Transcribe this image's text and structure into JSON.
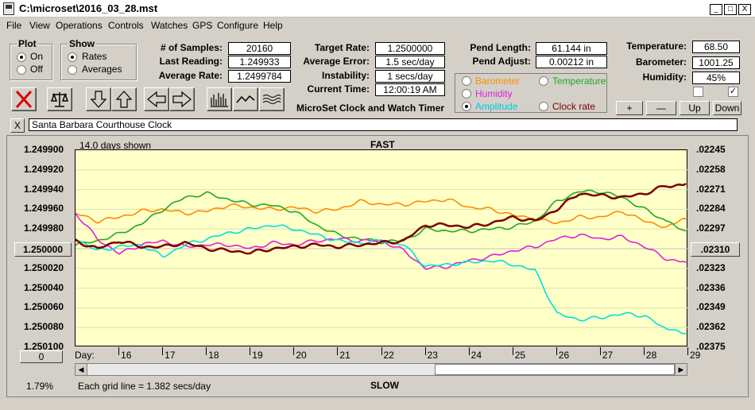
{
  "window": {
    "title": "C:\\microset\\2016_03_28.mst"
  },
  "menu": [
    "File",
    "View",
    "Operations",
    "Controls",
    "Watches",
    "GPS",
    "Configure",
    "Help"
  ],
  "plot": {
    "title": "Plot",
    "on": "On",
    "off": "Off",
    "selected": "On"
  },
  "show": {
    "title": "Show",
    "rates": "Rates",
    "averages": "Averages",
    "selected": "Rates"
  },
  "stats": {
    "samples_label": "# of Samples:",
    "samples": "20160",
    "last_label": "Last Reading:",
    "last": "1.249933",
    "avg_label": "Average Rate:",
    "avg": "1.2499784",
    "target_label": "Target Rate:",
    "target": "1.2500000",
    "avgerr_label": "Average Error:",
    "avgerr": "1.5 sec/day",
    "instab_label": "Instability:",
    "instab": "1 secs/day",
    "time_label": "Current Time:",
    "time": "12:00:19 AM",
    "pendlen_label": "Pend Length:",
    "pendlen": "61.144 in",
    "pendadj_label": "Pend Adjust:",
    "pendadj": "0.00212 in",
    "temp_label": "Temperature:",
    "temp": "68.50",
    "baro_label": "Barometer:",
    "baro": "1001.25",
    "hum_label": "Humidity:",
    "hum": "45%"
  },
  "app_title": "MicroSet Clock and Watch Timer",
  "series_select": {
    "barometer": "Barometer",
    "temperature": "Temperature",
    "humidity": "Humidity",
    "amplitude": "Amplitude",
    "clockrate": "Clock rate",
    "selected": "Amplitude"
  },
  "buttons": {
    "plus": "+",
    "minus": "—",
    "up": "Up",
    "down": "Down",
    "close": "X"
  },
  "clock_name": "Santa Barbara Courthouse Clock",
  "chart_data": {
    "type": "line",
    "top_label": "FAST",
    "bottom_label": "SLOW",
    "days_shown": "14.0 days shown",
    "grid_note": "Each grid line = 1.382 secs/day",
    "percent": "1.79%",
    "center_left": "1.250000",
    "center_right": ".02310",
    "day_label": "Day:",
    "zero_button": "0",
    "y_left_ticks": [
      "1.249900",
      "1.249920",
      "1.249940",
      "1.249960",
      "1.249980",
      "1.250000",
      "1.250020",
      "1.250040",
      "1.250060",
      "1.250080",
      "1.250100"
    ],
    "y_right_ticks": [
      ".02245",
      ".02258",
      ".02271",
      ".02284",
      ".02297",
      "",
      ".02323",
      ".02336",
      ".02349",
      ".02362",
      ".02375"
    ],
    "ylim": [
      1.2501,
      1.2499
    ],
    "x_ticks": [
      "16",
      "17",
      "18",
      "19",
      "20",
      "21",
      "22",
      "23",
      "24",
      "25",
      "26",
      "27",
      "28",
      "29"
    ],
    "xlim": [
      15,
      29
    ],
    "series": [
      {
        "color": "#ff8c00",
        "x": [
          15,
          15.5,
          16,
          16.5,
          17,
          17.5,
          18,
          18.5,
          19,
          19.5,
          20,
          20.5,
          21,
          21.5,
          22,
          22.5,
          23,
          23.5,
          24,
          24.5,
          25,
          25.5,
          26,
          26.5,
          27,
          27.5,
          28,
          28.5,
          28.95
        ],
        "values": [
          1.249964,
          1.249972,
          1.249968,
          1.249962,
          1.24996,
          1.249964,
          1.249962,
          1.249956,
          1.249958,
          1.24996,
          1.249958,
          1.249962,
          1.24996,
          1.249952,
          1.249955,
          1.249955,
          1.249952,
          1.24995,
          1.249958,
          1.24996,
          1.249966,
          1.24997,
          1.249974,
          1.249968,
          1.249968,
          1.249962,
          1.249972,
          1.249978,
          1.24997
        ]
      },
      {
        "color": "#22a822",
        "x": [
          15,
          15.5,
          16,
          16.5,
          17,
          17.5,
          18,
          18.5,
          19,
          19.5,
          20,
          20.5,
          21,
          21.5,
          22,
          22.5,
          23,
          23.5,
          24,
          24.5,
          25,
          25.5,
          26,
          26.5,
          27,
          27.5,
          28,
          28.5,
          28.95
        ],
        "values": [
          1.249996,
          1.249992,
          1.249985,
          1.249975,
          1.24996,
          1.249948,
          1.249944,
          1.24995,
          1.249955,
          1.249956,
          1.249962,
          1.249976,
          1.249986,
          1.24999,
          1.249993,
          1.249992,
          1.24998,
          1.249982,
          1.249982,
          1.24998,
          1.249978,
          1.249972,
          1.249952,
          1.249942,
          1.249942,
          1.249948,
          1.24996,
          1.249972,
          1.249982
        ]
      },
      {
        "color": "#e020e0",
        "x": [
          15,
          15.5,
          16,
          16.5,
          17,
          17.5,
          18,
          18.5,
          19,
          19.5,
          20,
          20.5,
          21,
          21.5,
          22,
          22.5,
          23,
          23.5,
          24,
          24.5,
          25,
          25.5,
          26,
          26.5,
          27,
          27.5,
          28,
          28.5,
          28.95
        ],
        "values": [
          1.249964,
          1.24999,
          1.250005,
          1.249996,
          1.249992,
          1.249998,
          1.249996,
          1.249996,
          1.25,
          1.249994,
          1.249996,
          1.249992,
          1.24999,
          1.249992,
          1.249992,
          1.250002,
          1.25002,
          1.250018,
          1.250012,
          1.250008,
          1.250002,
          1.249998,
          1.24999,
          1.249986,
          1.24999,
          1.249988,
          1.249998,
          1.25001,
          1.250014
        ]
      },
      {
        "color": "#00e0e0",
        "x": [
          15,
          15.5,
          16,
          16.5,
          17,
          17.5,
          18,
          18.5,
          19,
          19.5,
          20,
          20.5,
          21,
          21.5,
          22,
          22.5,
          23,
          23.5,
          24,
          24.5,
          25,
          25.5,
          26,
          26.5,
          27,
          27.5,
          28,
          28.5,
          28.95
        ],
        "values": [
          1.24999,
          1.250002,
          1.249998,
          1.249996,
          1.250008,
          1.249996,
          1.24999,
          1.249984,
          1.24998,
          1.249976,
          1.24998,
          1.249986,
          1.249992,
          1.249994,
          1.249992,
          1.249996,
          1.250018,
          1.250016,
          1.250014,
          1.250012,
          1.250016,
          1.250022,
          1.250066,
          1.250072,
          1.25007,
          1.250066,
          1.250068,
          1.250082,
          1.250086
        ]
      },
      {
        "color": "#7a0000",
        "x": [
          15,
          15.5,
          16,
          16.5,
          17,
          17.5,
          18,
          18.5,
          19,
          19.5,
          20,
          20.5,
          21,
          21.5,
          22,
          22.5,
          23,
          23.5,
          24,
          24.5,
          25,
          25.5,
          26,
          26.5,
          27,
          27.5,
          28,
          28.5,
          28.95
        ],
        "values": [
          1.249992,
          1.25,
          1.249992,
          1.249998,
          1.249998,
          1.249994,
          1.25,
          1.250002,
          1.250004,
          1.25,
          1.249998,
          1.249996,
          1.249998,
          1.249996,
          1.249994,
          1.249992,
          1.249976,
          1.249976,
          1.249978,
          1.249974,
          1.249968,
          1.249972,
          1.24996,
          1.249944,
          1.249946,
          1.249948,
          1.249944,
          1.249936,
          1.249934
        ]
      }
    ]
  },
  "colors": {
    "chart_bg": "#ffffc8",
    "baro": "#ff8c00",
    "temp": "#22a822",
    "hum": "#e020e0",
    "amp": "#00e0e0",
    "rate": "#7a0000"
  }
}
